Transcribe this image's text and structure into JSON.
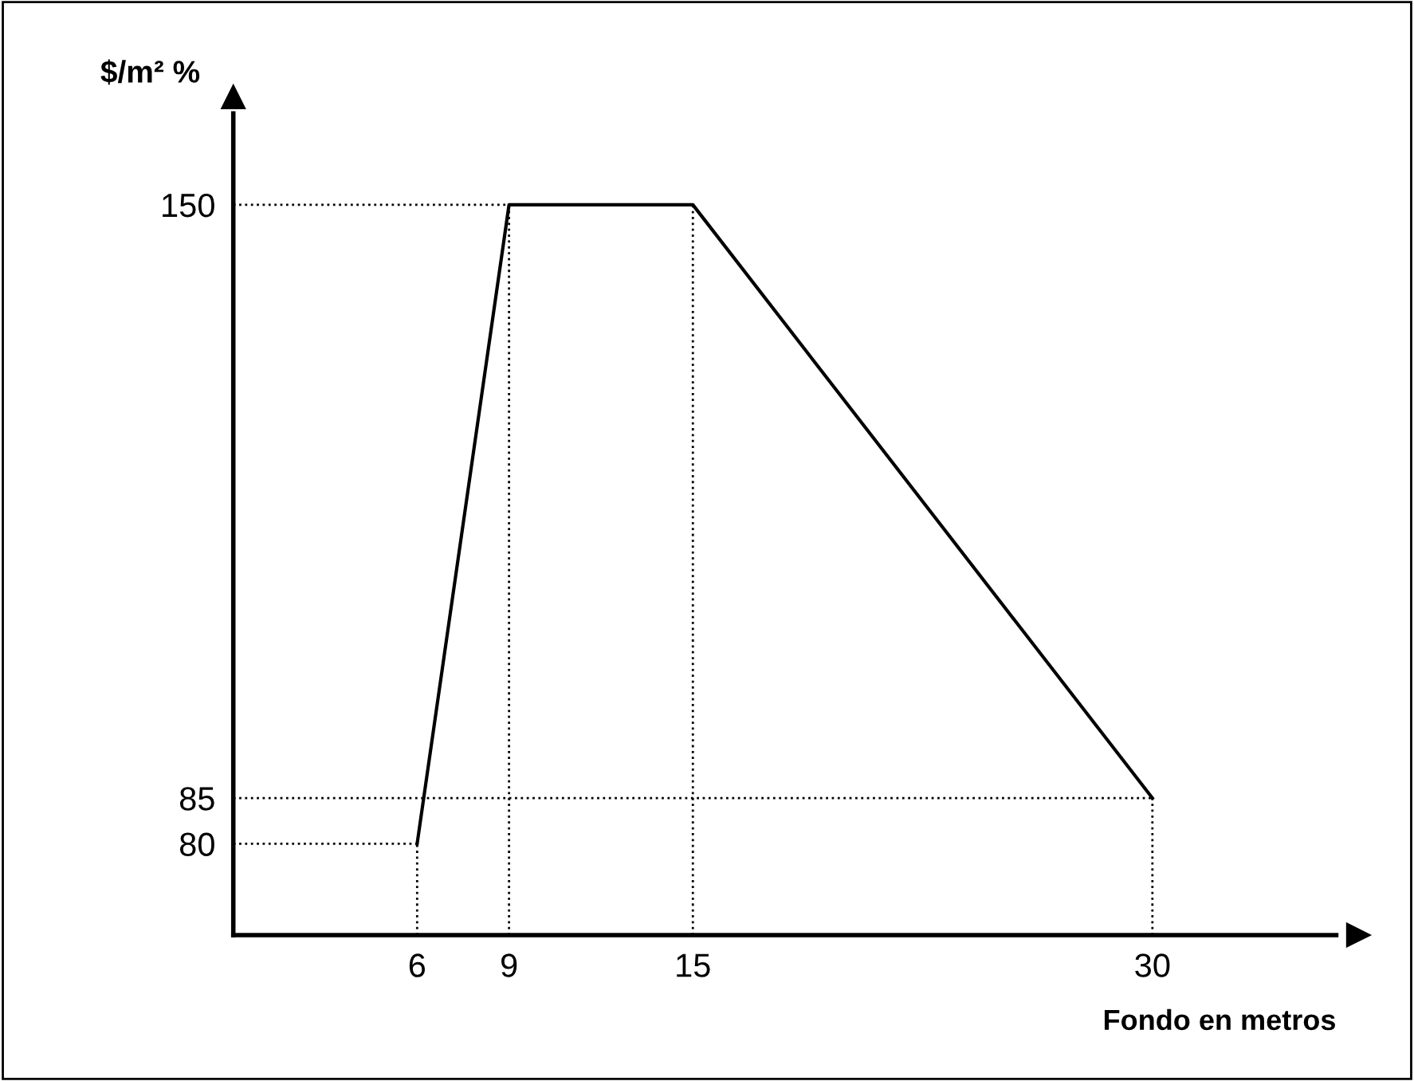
{
  "chart_data": {
    "type": "line",
    "xlabel": "Fondo en metros",
    "ylabel": "$/m² %",
    "x": [
      6,
      9,
      15,
      30
    ],
    "series": [
      {
        "color": "#000000",
        "values": [
          80,
          150,
          150,
          85
        ]
      }
    ],
    "xlim": [
      0,
      36
    ],
    "ylim": [
      70,
      160
    ],
    "xticks": [
      6,
      9,
      15,
      30
    ],
    "yticks": [
      80,
      85,
      150
    ],
    "ref_lines": [
      {
        "axis": "y",
        "value": 80,
        "color": "#000000",
        "line_style": "dotted"
      },
      {
        "axis": "y",
        "value": 85,
        "color": "#000000",
        "line_style": "dotted"
      },
      {
        "axis": "y",
        "value": 150,
        "color": "#000000",
        "line_style": "dotted"
      },
      {
        "axis": "x",
        "value": 6,
        "color": "#000000",
        "line_style": "dotted"
      },
      {
        "axis": "x",
        "value": 9,
        "color": "#000000",
        "line_style": "dotted"
      },
      {
        "axis": "x",
        "value": 15,
        "color": "#000000",
        "line_style": "dotted"
      },
      {
        "axis": "x",
        "value": 30,
        "color": "#000000",
        "line_style": "dotted"
      }
    ],
    "grid": false,
    "legend": false,
    "marker": "none",
    "line_style": "solid"
  }
}
